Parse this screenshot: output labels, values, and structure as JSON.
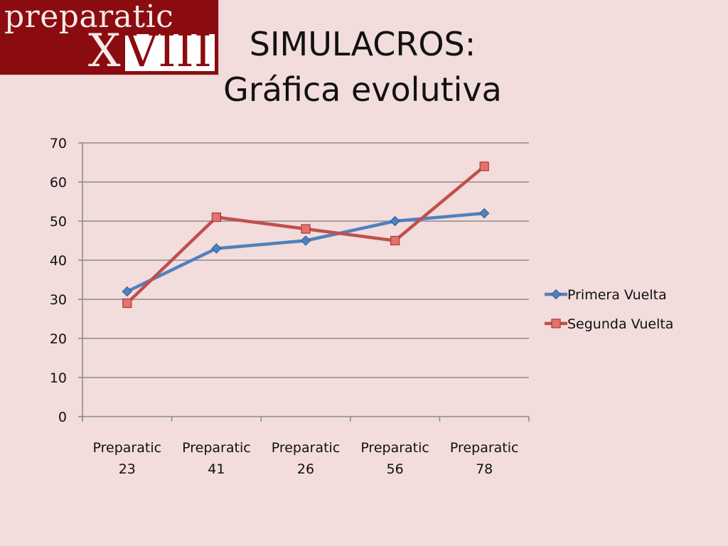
{
  "logo": {
    "line1": "preparatic",
    "line2_light": "X",
    "line2_dark": "VIII"
  },
  "title": {
    "line1": "SIMULACROS:",
    "line2": "Gráfica evolutiva"
  },
  "chart_data": {
    "type": "line",
    "categories": [
      [
        "Preparatic",
        "23"
      ],
      [
        "Preparatic",
        "41"
      ],
      [
        "Preparatic",
        "26"
      ],
      [
        "Preparatic",
        "56"
      ],
      [
        "Preparatic",
        "78"
      ]
    ],
    "series": [
      {
        "name": "Primera Vuelta",
        "values": [
          32,
          43,
          45,
          50,
          52
        ],
        "color": "#4f81bd",
        "marker": "diamond"
      },
      {
        "name": "Segunda Vuelta",
        "values": [
          29,
          51,
          48,
          45,
          64
        ],
        "color": "#c0504d",
        "marker": "square"
      }
    ],
    "ylim": [
      0,
      70
    ],
    "yticks": [
      0,
      10,
      20,
      30,
      40,
      50,
      60,
      70
    ],
    "grid": true,
    "legend": "right"
  }
}
